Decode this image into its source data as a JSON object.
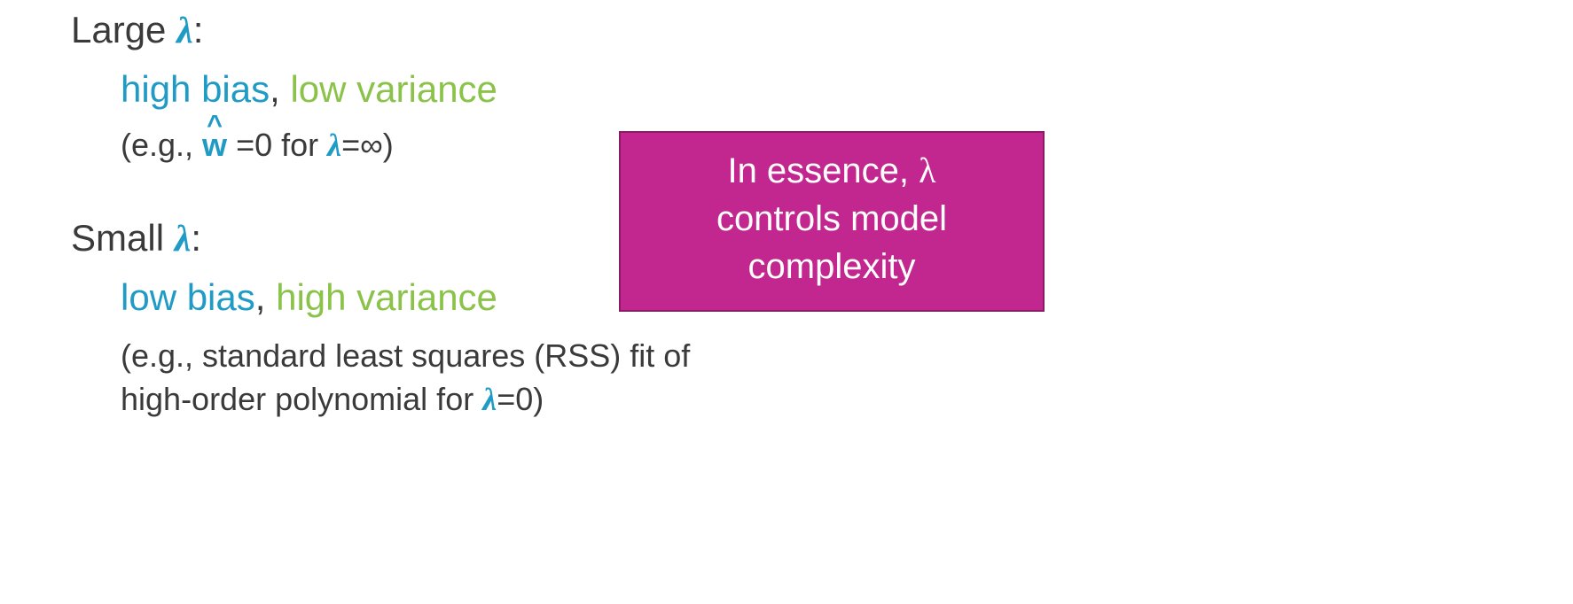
{
  "colors": {
    "blue": "#1f9bc5",
    "green": "#8bc34a",
    "text": "#3a3a3a",
    "callout_bg": "#c2278f",
    "callout_border": "#8a1c66",
    "callout_text": "#ffffff",
    "background": "#ffffff"
  },
  "typography": {
    "heading_fontsize": 42,
    "biasvar_fontsize": 42,
    "example_fontsize": 36,
    "callout_fontsize": 40,
    "font_family": "Segoe UI"
  },
  "large": {
    "label_prefix": "Large ",
    "lambda": "λ",
    "colon": ":",
    "bias": "high bias",
    "comma": ", ",
    "variance": "low variance",
    "ex_open": "(e.g., ",
    "w_hat": "w",
    "eq0": " =0 for ",
    "lambda_inf": "λ",
    "inf": "=∞",
    "close": ")"
  },
  "small": {
    "label_prefix": "Small ",
    "lambda": "λ",
    "colon": ":",
    "bias": "low bias",
    "comma": ", ",
    "variance": "high variance",
    "ex_line1_a": "(e.g., standard least squares (RSS) fit of",
    "ex_line2_a": " high-order polynomial for ",
    "lambda0": "λ",
    "zero": "=0",
    "close": ")"
  },
  "callout": {
    "line1_a": "In essence, ",
    "line1_b": "λ",
    "line2": "controls model",
    "line3": "complexity"
  }
}
